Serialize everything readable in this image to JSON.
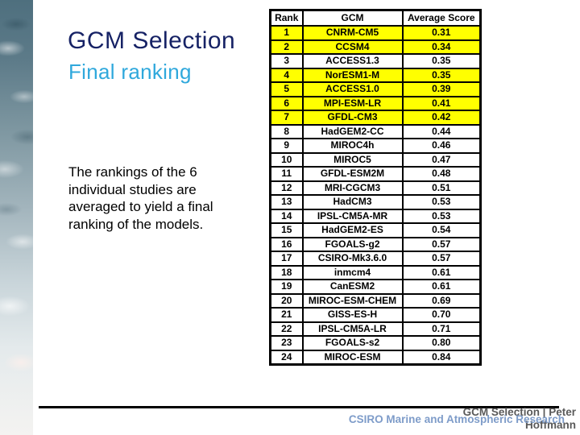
{
  "slide": {
    "title": "GCM Selection",
    "subtitle": "Final ranking",
    "body_text": "The rankings of the 6\nindividual studies are\naveraged to yield a final\nranking of the models.",
    "colors": {
      "title": "#162265",
      "subtitle": "#2fa8dc",
      "highlight_row": "#ffff00",
      "footer_credit": "#595959",
      "footer_org": "#7e9cc9",
      "table_border": "#000000"
    }
  },
  "table": {
    "headers": [
      "Rank",
      "GCM",
      "Average Score"
    ],
    "rows": [
      {
        "rank": "1",
        "gcm": "CNRM-CM5",
        "score": "0.31",
        "highlighted": true
      },
      {
        "rank": "2",
        "gcm": "CCSM4",
        "score": "0.34",
        "highlighted": true
      },
      {
        "rank": "3",
        "gcm": "ACCESS1.3",
        "score": "0.35",
        "highlighted": false
      },
      {
        "rank": "4",
        "gcm": "NorESM1-M",
        "score": "0.35",
        "highlighted": true
      },
      {
        "rank": "5",
        "gcm": "ACCESS1.0",
        "score": "0.39",
        "highlighted": true
      },
      {
        "rank": "6",
        "gcm": "MPI-ESM-LR",
        "score": "0.41",
        "highlighted": true
      },
      {
        "rank": "7",
        "gcm": "GFDL-CM3",
        "score": "0.42",
        "highlighted": true
      },
      {
        "rank": "8",
        "gcm": "HadGEM2-CC",
        "score": "0.44",
        "highlighted": false
      },
      {
        "rank": "9",
        "gcm": "MIROC4h",
        "score": "0.46",
        "highlighted": false
      },
      {
        "rank": "10",
        "gcm": "MIROC5",
        "score": "0.47",
        "highlighted": false
      },
      {
        "rank": "11",
        "gcm": "GFDL-ESM2M",
        "score": "0.48",
        "highlighted": false
      },
      {
        "rank": "12",
        "gcm": "MRI-CGCM3",
        "score": "0.51",
        "highlighted": false
      },
      {
        "rank": "13",
        "gcm": "HadCM3",
        "score": "0.53",
        "highlighted": false
      },
      {
        "rank": "14",
        "gcm": "IPSL-CM5A-MR",
        "score": "0.53",
        "highlighted": false
      },
      {
        "rank": "15",
        "gcm": "HadGEM2-ES",
        "score": "0.54",
        "highlighted": false
      },
      {
        "rank": "16",
        "gcm": "FGOALS-g2",
        "score": "0.57",
        "highlighted": false
      },
      {
        "rank": "17",
        "gcm": "CSIRO-Mk3.6.0",
        "score": "0.57",
        "highlighted": false
      },
      {
        "rank": "18",
        "gcm": "inmcm4",
        "score": "0.61",
        "highlighted": false
      },
      {
        "rank": "19",
        "gcm": "CanESM2",
        "score": "0.61",
        "highlighted": false
      },
      {
        "rank": "20",
        "gcm": "MIROC-ESM-CHEM",
        "score": "0.69",
        "highlighted": false
      },
      {
        "rank": "21",
        "gcm": "GISS-ES-H",
        "score": "0.70",
        "highlighted": false
      },
      {
        "rank": "22",
        "gcm": "IPSL-CM5A-LR",
        "score": "0.71",
        "highlighted": false
      },
      {
        "rank": "23",
        "gcm": "FGOALS-s2",
        "score": "0.80",
        "highlighted": false
      },
      {
        "rank": "24",
        "gcm": "MIROC-ESM",
        "score": "0.84",
        "highlighted": false
      }
    ]
  },
  "footer": {
    "credit_text": "GCM Selection | Peter\nHoffmann",
    "org_text": "CSIRO Marine and Atmospheric Research"
  }
}
